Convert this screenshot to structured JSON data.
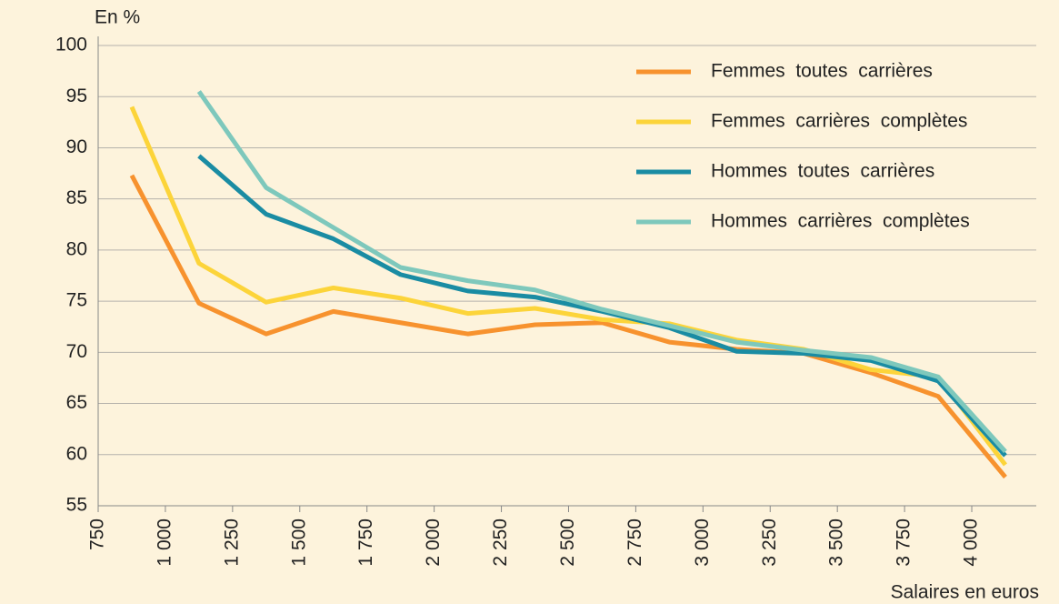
{
  "chart_data": {
    "type": "line",
    "y_label": "En %",
    "x_label": "Salaires en euros",
    "x": [
      875,
      1125,
      1375,
      1625,
      1875,
      2125,
      2375,
      2625,
      2875,
      3125,
      3375,
      3625,
      3875,
      4125
    ],
    "series": [
      {
        "name": "Femmes  toutes  carrières",
        "color": "#f7922e",
        "values": [
          87.3,
          74.8,
          71.8,
          74.0,
          72.9,
          71.8,
          72.7,
          72.9,
          71.0,
          70.3,
          69.9,
          68.0,
          65.7,
          57.8
        ]
      },
      {
        "name": "Femmes  carrières  complètes",
        "color": "#fcd43a",
        "values": [
          94.0,
          78.7,
          74.9,
          76.3,
          75.3,
          73.8,
          74.3,
          73.2,
          72.8,
          71.2,
          70.3,
          68.3,
          67.6,
          59.0
        ]
      },
      {
        "name": "Hommes  toutes  carrières",
        "color": "#1a8ca3",
        "values": [
          null,
          89.2,
          83.5,
          81.1,
          77.6,
          76.0,
          75.4,
          74.0,
          72.4,
          70.1,
          69.9,
          69.2,
          67.2,
          59.9
        ]
      },
      {
        "name": "Hommes  carrières  complètes",
        "color": "#7ec8bc",
        "values": [
          null,
          95.5,
          86.1,
          82.2,
          78.3,
          77.0,
          76.1,
          74.2,
          72.6,
          71.0,
          70.2,
          69.5,
          67.6,
          60.3
        ]
      }
    ],
    "xlim": [
      750,
      4240
    ],
    "xticks": [
      750,
      {
        "value": 1000,
        "label": "1 000"
      },
      {
        "value": 1250,
        "label": "1 250"
      },
      {
        "value": 1500,
        "label": "1 500"
      },
      {
        "value": 1750,
        "label": "1 750"
      },
      {
        "value": 2000,
        "label": "2 000"
      },
      {
        "value": 2250,
        "label": "2 250"
      },
      {
        "value": 2500,
        "label": "2 500"
      },
      {
        "value": 2750,
        "label": "2 750"
      },
      {
        "value": 3000,
        "label": "3 000"
      },
      {
        "value": 3250,
        "label": "3 250"
      },
      {
        "value": 3500,
        "label": "3 500"
      },
      {
        "value": 3750,
        "label": "3 750"
      },
      {
        "value": 4000,
        "label": "4 000"
      }
    ],
    "ylim": [
      55,
      100
    ],
    "yticks": [
      55,
      60,
      65,
      70,
      75,
      80,
      85,
      90,
      95,
      100
    ],
    "grid": true,
    "legend": "top-right"
  }
}
